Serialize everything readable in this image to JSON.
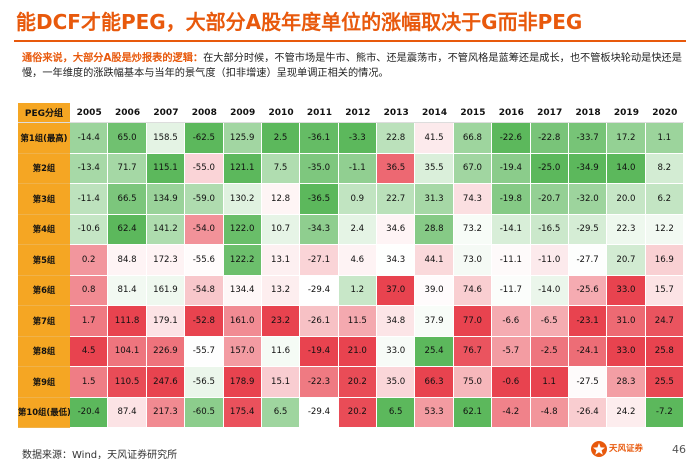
{
  "header": {
    "title": "能DCF才能PEG，大部分A股年度单位的涨幅取决于G而非PEG"
  },
  "note": {
    "lead": "通俗来说，大部分A股是炒报表的逻辑：",
    "body": "在大部分时候，不管市场是牛市、熊市、还是震荡市，不管风格是蓝筹还是成长，也不管板块轮动是快还是慢，一年维度的涨跌幅基本与当年的景气度（扣非增速）呈现单调正相关的情况。"
  },
  "table": {
    "corner": "PEG分组",
    "years": [
      "2005",
      "2006",
      "2007",
      "2008",
      "2009",
      "2010",
      "2011",
      "2012",
      "2013",
      "2014",
      "2015",
      "2016",
      "2017",
      "2018",
      "2019",
      "2020"
    ],
    "rows": [
      {
        "label": "第1组(最高)",
        "values": [
          "-14.4",
          "65.0",
          "158.5",
          "-62.5",
          "125.9",
          "2.5",
          "-36.1",
          "-3.3",
          "22.8",
          "41.5",
          "66.8",
          "-22.6",
          "-22.8",
          "-33.7",
          "17.2",
          "1.1"
        ]
      },
      {
        "label": "第2组",
        "values": [
          "-13.4",
          "71.7",
          "115.1",
          "-55.0",
          "121.1",
          "7.5",
          "-35.0",
          "-1.1",
          "36.5",
          "35.5",
          "67.0",
          "-19.4",
          "-25.0",
          "-34.9",
          "14.0",
          "8.2"
        ]
      },
      {
        "label": "第3组",
        "values": [
          "-11.4",
          "66.5",
          "134.9",
          "-59.0",
          "130.2",
          "12.8",
          "-36.5",
          "0.9",
          "22.7",
          "31.3",
          "74.3",
          "-19.8",
          "-20.7",
          "-32.0",
          "20.0",
          "6.2"
        ]
      },
      {
        "label": "第4组",
        "values": [
          "-10.6",
          "62.4",
          "141.2",
          "-54.0",
          "122.0",
          "10.7",
          "-34.3",
          "2.4",
          "34.6",
          "28.8",
          "73.2",
          "-14.1",
          "-16.5",
          "-29.5",
          "22.3",
          "12.2"
        ]
      },
      {
        "label": "第5组",
        "values": [
          "0.2",
          "84.8",
          "172.3",
          "-55.6",
          "122.2",
          "13.1",
          "-27.1",
          "4.6",
          "34.3",
          "44.1",
          "73.0",
          "-11.1",
          "-11.0",
          "-27.7",
          "20.7",
          "16.9"
        ]
      },
      {
        "label": "第6组",
        "values": [
          "0.8",
          "81.4",
          "161.9",
          "-54.8",
          "134.4",
          "13.2",
          "-29.4",
          "1.2",
          "37.0",
          "39.0",
          "74.6",
          "-11.7",
          "-14.0",
          "-25.6",
          "33.0",
          "15.7"
        ]
      },
      {
        "label": "第7组",
        "values": [
          "1.7",
          "111.8",
          "179.1",
          "-52.8",
          "161.0",
          "23.2",
          "-26.1",
          "11.5",
          "34.8",
          "37.9",
          "77.0",
          "-6.6",
          "-6.5",
          "-23.1",
          "31.0",
          "24.7"
        ]
      },
      {
        "label": "第8组",
        "values": [
          "4.5",
          "104.1",
          "226.9",
          "-55.7",
          "157.0",
          "11.6",
          "-19.4",
          "21.0",
          "33.0",
          "25.4",
          "76.7",
          "-5.7",
          "-2.5",
          "-24.1",
          "33.0",
          "25.8"
        ]
      },
      {
        "label": "第9组",
        "values": [
          "1.5",
          "110.5",
          "247.6",
          "-56.5",
          "178.9",
          "15.1",
          "-22.3",
          "20.2",
          "35.0",
          "66.3",
          "75.0",
          "-0.6",
          "1.1",
          "-27.5",
          "28.3",
          "25.5"
        ]
      },
      {
        "label": "第10组(最低)",
        "values": [
          "-20.4",
          "87.4",
          "217.3",
          "-60.5",
          "175.4",
          "6.5",
          "-29.4",
          "20.2",
          "6.5",
          "53.3",
          "62.1",
          "-4.2",
          "-4.8",
          "-26.4",
          "24.2",
          "-7.2"
        ]
      }
    ],
    "colors": {
      "low": "#5cb85c",
      "mid": "#ffffff",
      "high": "#e8434f",
      "label_bg": "#f5a623"
    }
  },
  "footer": {
    "source": "数据来源：Wind，天风证券研究所",
    "logo_text": "天风证券",
    "page_number": "46"
  }
}
